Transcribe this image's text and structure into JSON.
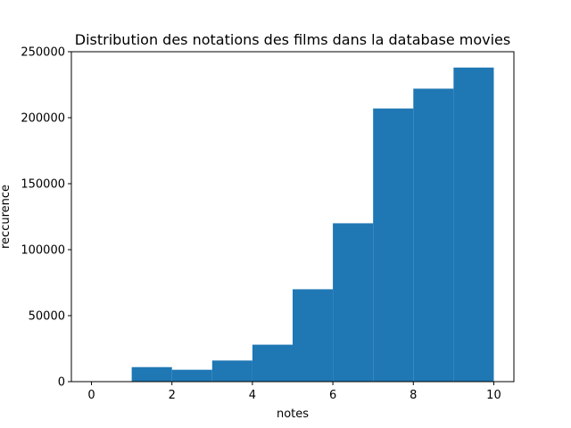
{
  "chart_data": {
    "type": "bar",
    "title": "Distribution des notations des films dans la database movies",
    "xlabel": "notes",
    "ylabel": "reccurence",
    "xlim": [
      -0.5,
      10.5
    ],
    "ylim": [
      0,
      250000
    ],
    "xticks": [
      0,
      2,
      4,
      6,
      8,
      10
    ],
    "yticks": [
      0,
      50000,
      100000,
      150000,
      200000,
      250000
    ],
    "bin_edges": [
      1,
      2,
      3,
      4,
      5,
      6,
      7,
      8,
      9,
      10
    ],
    "values": [
      11000,
      9000,
      16000,
      28000,
      70000,
      120000,
      207000,
      222000,
      238000
    ],
    "color": "#1f77b4",
    "grid": false
  }
}
